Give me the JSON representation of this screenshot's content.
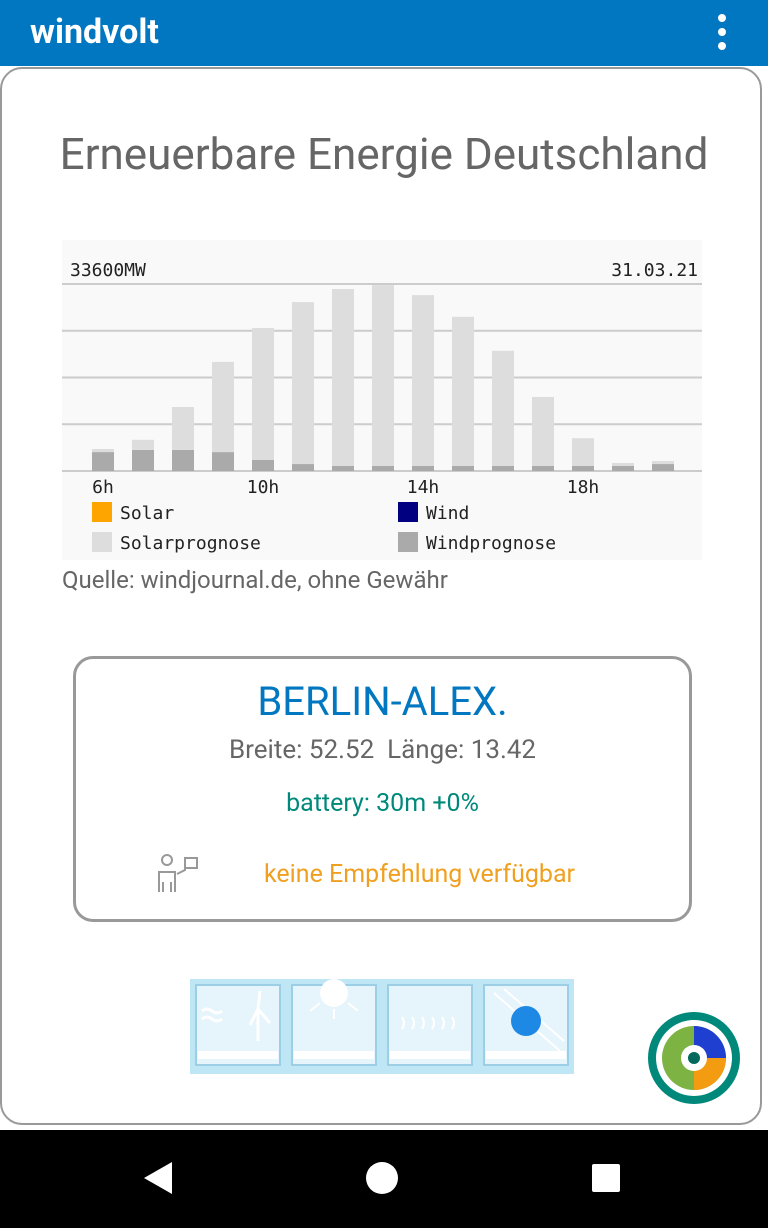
{
  "app_bar": {
    "title": "windvolt"
  },
  "page": {
    "title": "Erneuerbare Energie Deutschland",
    "source": "Quelle: windjournal.de, ohne Gewähr"
  },
  "chart_data": {
    "type": "bar",
    "stacked": true,
    "date": "31.03.21",
    "categories": [
      "6h",
      null,
      null,
      null,
      "10h",
      null,
      null,
      null,
      "14h",
      null,
      null,
      null,
      "18h",
      null,
      null
    ],
    "series": [
      {
        "name": "Windprognose",
        "color": "#aaaaaa",
        "values": [
          3400,
          3800,
          3800,
          3400,
          2000,
          1250,
          900,
          900,
          900,
          900,
          900,
          900,
          900,
          900,
          1250
        ]
      },
      {
        "name": "Solarprognose",
        "color": "#dddddd",
        "values": [
          550,
          1800,
          7700,
          16200,
          23700,
          29100,
          31800,
          32500,
          30700,
          26800,
          20700,
          12400,
          5000,
          540,
          540
        ]
      }
    ],
    "legend": [
      {
        "name": "Solar",
        "color": "#ffa500"
      },
      {
        "name": "Wind",
        "color": "#000080"
      },
      {
        "name": "Solarprognose",
        "color": "#dddddd"
      },
      {
        "name": "Windprognose",
        "color": "#aaaaaa"
      }
    ],
    "ylim": [
      0,
      33600
    ],
    "yticks": [
      0,
      8400,
      16800,
      25200,
      {
        "value": 33600,
        "label": "33600MW"
      }
    ],
    "grid": true
  },
  "location": {
    "name": "BERLIN-ALEX.",
    "coords": "Breite: 52.52  Länge: 13.42",
    "battery": "battery: 30m +0%",
    "recommendation": "keine Empfehlung verfügbar"
  }
}
